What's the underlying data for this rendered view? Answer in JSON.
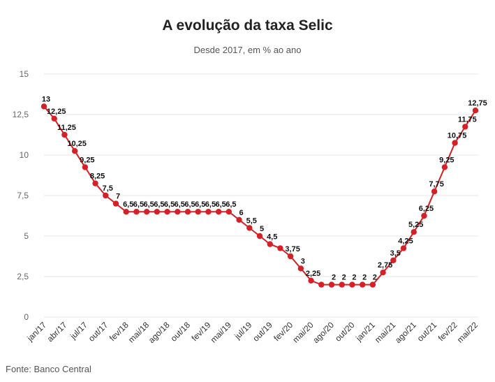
{
  "chart_data": {
    "type": "line",
    "title": "A evolução da taxa Selic",
    "subtitle": "Desde 2017, em % ao ano",
    "source": "Fonte: Banco Central",
    "ylim": [
      0,
      15
    ],
    "yticks": [
      "0",
      "2,5",
      "5",
      "7,5",
      "10",
      "12,5",
      "15"
    ],
    "ytick_values": [
      0,
      2.5,
      5,
      7.5,
      10,
      12.5,
      15
    ],
    "xtick_labels": [
      "jan/17",
      "abr/17",
      "jul/17",
      "out/17",
      "fev/18",
      "mai/18",
      "ago/18",
      "out/18",
      "fev/19",
      "mai/19",
      "jul/19",
      "out/19",
      "fev/20",
      "mai/20",
      "ago/20",
      "out/20",
      "jan/21",
      "mai/21",
      "ago/21",
      "out/21",
      "fev/22",
      "mai/22"
    ],
    "grid": true,
    "line_color": "#d62027",
    "series": [
      {
        "values": [
          13,
          12.25,
          11.25,
          10.25,
          9.25,
          8.25,
          7.5,
          7,
          6.5,
          6.5,
          6.5,
          6.5,
          6.5,
          6.5,
          6.5,
          6.5,
          6.5,
          6.5,
          6.5,
          6,
          5.5,
          5,
          4.5,
          4.25,
          3.75,
          3,
          2.25,
          2,
          2,
          2,
          2,
          2,
          2,
          2.75,
          3.5,
          4.25,
          5.25,
          6.25,
          7.75,
          9.25,
          10.75,
          11.75,
          12.75
        ],
        "labels": [
          "13",
          "12,25",
          "11,25",
          "10,25",
          "9,25",
          "8,25",
          "7,5",
          "7",
          "6,5",
          "6,5",
          "6,5",
          "6,5",
          "6,5",
          "6,5",
          "6,5",
          "6,5",
          "6,5",
          "6,5",
          "6,5",
          "6",
          "5,5",
          "5",
          "4,5",
          "",
          "3,75",
          "3",
          "2,25",
          "",
          "2",
          "2",
          "2",
          "2",
          "2",
          "2,75",
          "3,5",
          "4,25",
          "5,25",
          "6,25",
          "7,75",
          "9,25",
          "10,75",
          "11,75",
          "12,75"
        ]
      }
    ]
  }
}
